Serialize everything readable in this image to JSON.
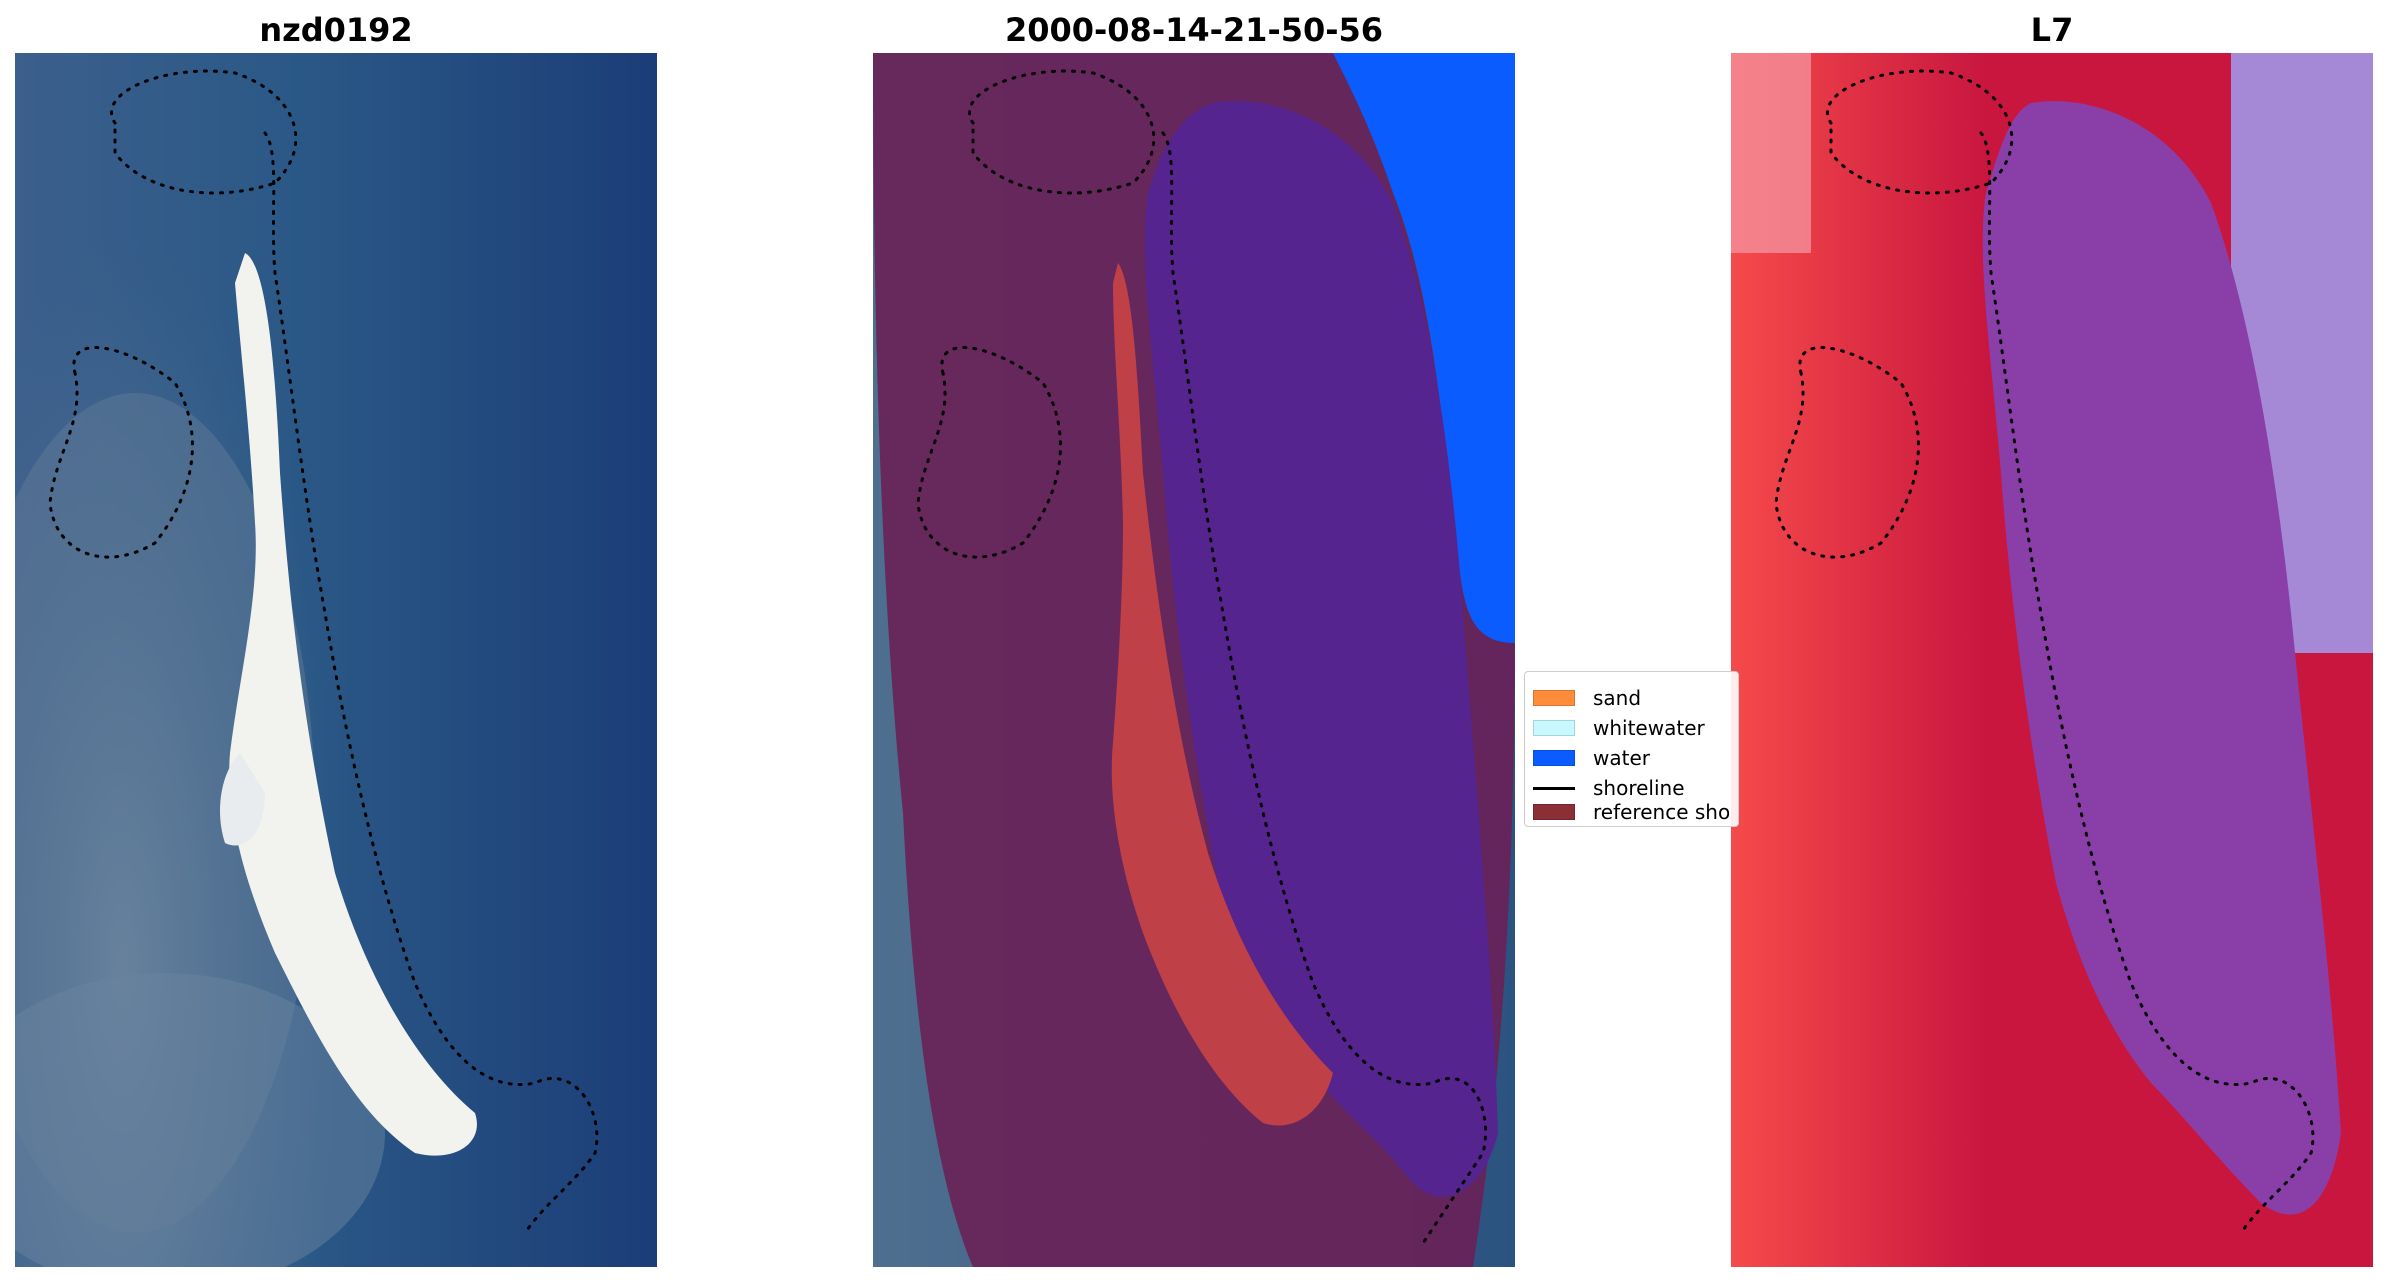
{
  "figure": {
    "panels": [
      {
        "title": "nzd0192"
      },
      {
        "title": "2000-08-14-21-50-56"
      },
      {
        "title": "L7"
      }
    ]
  },
  "legend": {
    "items": [
      {
        "label": "sand",
        "color": "#ff8c3b",
        "kind": "patch"
      },
      {
        "label": "whitewater",
        "color": "#c8f7ff",
        "kind": "patch"
      },
      {
        "label": "water",
        "color": "#0a5cff",
        "kind": "patch"
      },
      {
        "label": "shoreline",
        "color": "#000000",
        "kind": "line"
      },
      {
        "label": "reference sho",
        "color": "#8b2e36",
        "kind": "patch"
      }
    ]
  },
  "colors": {
    "ocean": "#1e3f78",
    "beach": "#f2f2ee",
    "classified_sand": "#c04048",
    "classified_water": "#55248f",
    "water_mask": "#0a5cff",
    "buffer_overlay": "#6b1f55",
    "index_land": "#c8163f",
    "index_water": "#8a3fa8"
  }
}
